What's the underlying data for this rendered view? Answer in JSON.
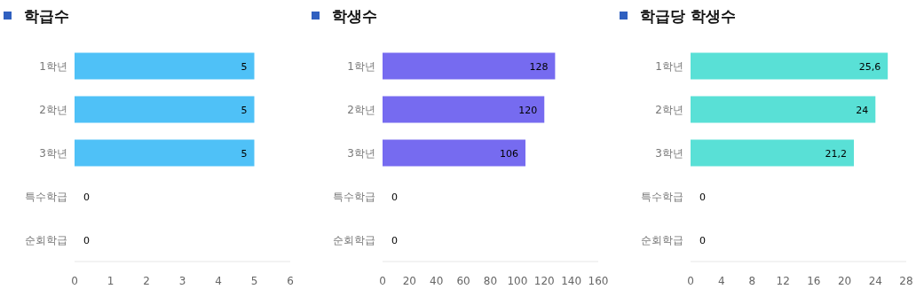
{
  "chart_data": [
    {
      "type": "bar",
      "orientation": "horizontal",
      "title": "학급수",
      "categories": [
        "1학년",
        "2학년",
        "3학년",
        "특수학급",
        "순회학급"
      ],
      "values": [
        5,
        5,
        5,
        0,
        0
      ],
      "color": "#4fc1f7",
      "xlim": [
        0,
        6
      ],
      "xticks": [
        0,
        1,
        2,
        3,
        4,
        5,
        6
      ],
      "data_labels": true
    },
    {
      "type": "bar",
      "orientation": "horizontal",
      "title": "학생수",
      "categories": [
        "1학년",
        "2학년",
        "3학년",
        "특수학급",
        "순회학급"
      ],
      "values": [
        128,
        120,
        106,
        0,
        0
      ],
      "color": "#766bf0",
      "xlim": [
        0,
        160
      ],
      "xticks": [
        0,
        20,
        40,
        60,
        80,
        100,
        120,
        140,
        160
      ],
      "data_labels": true
    },
    {
      "type": "bar",
      "orientation": "horizontal",
      "title": "학급당 학생수",
      "categories": [
        "1학년",
        "2학년",
        "3학년",
        "특수학급",
        "순회학급"
      ],
      "values": [
        25.6,
        24,
        21.2,
        0,
        0
      ],
      "value_labels": [
        "25,6",
        "24",
        "21,2",
        "0",
        "0"
      ],
      "color": "#59e0d6",
      "xlim": [
        0,
        28
      ],
      "xticks": [
        0,
        4,
        8,
        12,
        16,
        20,
        24,
        28
      ]
    }
  ]
}
